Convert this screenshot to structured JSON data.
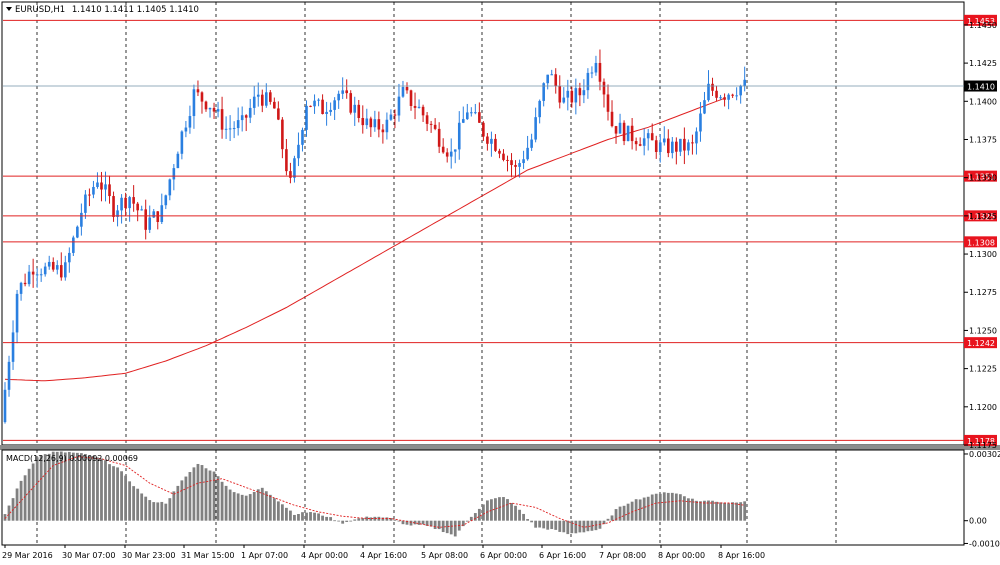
{
  "header": {
    "symbol": "EURUSD,H1",
    "ohlc": "1.1410 1.1411 1.1405 1.1410"
  },
  "macd_header": "MACD(12,26,9) 0.00092 0.00069",
  "colors": {
    "bull": "#2a7fe0",
    "bear": "#d01818",
    "level_line": "#e02020",
    "ma_line": "#e02020",
    "grid": "#000000",
    "histogram": "#808080",
    "signal": "#e02020",
    "bid_line": "#7090a8"
  },
  "chart_data": [
    {
      "type": "candlestick",
      "title": "EURUSD,H1",
      "ylim": [
        1.1175,
        1.1465
      ],
      "y_ticks": [
        "1.1450",
        "1.1425",
        "1.1400",
        "1.1375",
        "1.1350",
        "1.1325",
        "1.1300",
        "1.1275",
        "1.1250",
        "1.1225",
        "1.1200",
        "1.1175"
      ],
      "x_labels": [
        "29 Mar 2016",
        "30 Mar 07:00",
        "30 Mar 23:00",
        "31 Mar 15:00",
        "1 Apr 07:00",
        "4 Apr 00:00",
        "4 Apr 16:00",
        "5 Apr 08:00",
        "6 Apr 00:00",
        "6 Apr 16:00",
        "7 Apr 08:00",
        "8 Apr 00:00",
        "8 Apr 16:00"
      ],
      "horizontal_levels": [
        "1.1453",
        "1.1351",
        "1.1325",
        "1.1308",
        "1.1242",
        "1.1178"
      ],
      "current_price": "1.1410",
      "ma_anchors": [
        [
          0,
          1.1218
        ],
        [
          10,
          1.1217
        ],
        [
          20,
          1.1219
        ],
        [
          30,
          1.1222
        ],
        [
          40,
          1.123
        ],
        [
          50,
          1.124
        ],
        [
          60,
          1.1252
        ],
        [
          70,
          1.1265
        ],
        [
          80,
          1.128
        ],
        [
          90,
          1.1295
        ],
        [
          100,
          1.131
        ],
        [
          110,
          1.1325
        ],
        [
          120,
          1.134
        ],
        [
          130,
          1.1355
        ],
        [
          140,
          1.1365
        ],
        [
          150,
          1.1375
        ],
        [
          160,
          1.1383
        ],
        [
          170,
          1.1393
        ],
        [
          179,
          1.1402
        ]
      ],
      "price_anchors": [
        [
          0,
          1.119
        ],
        [
          4,
          1.1275
        ],
        [
          8,
          1.1292
        ],
        [
          12,
          1.1289
        ],
        [
          16,
          1.129
        ],
        [
          20,
          1.1328
        ],
        [
          24,
          1.135
        ],
        [
          28,
          1.133
        ],
        [
          32,
          1.1338
        ],
        [
          36,
          1.132
        ],
        [
          40,
          1.1328
        ],
        [
          44,
          1.137
        ],
        [
          48,
          1.1405
        ],
        [
          52,
          1.1398
        ],
        [
          56,
          1.1382
        ],
        [
          60,
          1.1385
        ],
        [
          64,
          1.1405
        ],
        [
          68,
          1.1395
        ],
        [
          72,
          1.1345
        ],
        [
          76,
          1.14
        ],
        [
          80,
          1.1395
        ],
        [
          84,
          1.1405
        ],
        [
          88,
          1.1395
        ],
        [
          92,
          1.1382
        ],
        [
          96,
          1.1385
        ],
        [
          100,
          1.1405
        ],
        [
          104,
          1.1395
        ],
        [
          108,
          1.138
        ],
        [
          112,
          1.1365
        ],
        [
          116,
          1.1395
        ],
        [
          120,
          1.138
        ],
        [
          124,
          1.137
        ],
        [
          128,
          1.1355
        ],
        [
          132,
          1.1375
        ],
        [
          136,
          1.142
        ],
        [
          140,
          1.14
        ],
        [
          144,
          1.1405
        ],
        [
          148,
          1.143
        ],
        [
          152,
          1.1385
        ],
        [
          156,
          1.1378
        ],
        [
          160,
          1.1375
        ],
        [
          164,
          1.137
        ],
        [
          168,
          1.137
        ],
        [
          172,
          1.137
        ],
        [
          176,
          1.1408
        ],
        [
          180,
          1.1405
        ],
        [
          184,
          1.141
        ]
      ]
    },
    {
      "type": "histogram",
      "title": "MACD(12,26,9)",
      "ylim": [
        -0.0011,
        0.0032
      ],
      "y_ticks": [
        "0.00302",
        "0.00",
        "-0.00103"
      ],
      "hist_anchors": [
        [
          0,
          0.0003
        ],
        [
          4,
          0.0018
        ],
        [
          8,
          0.0029
        ],
        [
          12,
          0.0031
        ],
        [
          16,
          0.0031
        ],
        [
          20,
          0.003
        ],
        [
          24,
          0.0028
        ],
        [
          28,
          0.0024
        ],
        [
          32,
          0.0016
        ],
        [
          36,
          0.0009
        ],
        [
          40,
          0.0008
        ],
        [
          44,
          0.0018
        ],
        [
          48,
          0.0026
        ],
        [
          52,
          0.0022
        ],
        [
          56,
          0.0014
        ],
        [
          60,
          0.0011
        ],
        [
          64,
          0.0015
        ],
        [
          68,
          0.0009
        ],
        [
          72,
          0.0003
        ],
        [
          76,
          0.0004
        ],
        [
          80,
          0.0002
        ],
        [
          84,
          -0.0001
        ],
        [
          88,
          0.0001
        ],
        [
          92,
          0.0002
        ],
        [
          96,
          0.0001
        ],
        [
          100,
          -0.0002
        ],
        [
          104,
          -0.0002
        ],
        [
          108,
          -0.0004
        ],
        [
          112,
          -0.0007
        ],
        [
          116,
          0.0002
        ],
        [
          120,
          0.0009
        ],
        [
          124,
          0.0011
        ],
        [
          128,
          0.0005
        ],
        [
          132,
          -0.0003
        ],
        [
          136,
          -0.0004
        ],
        [
          140,
          -0.0006
        ],
        [
          144,
          -0.0005
        ],
        [
          148,
          -0.0004
        ],
        [
          152,
          0.0005
        ],
        [
          156,
          0.0009
        ],
        [
          160,
          0.0011
        ],
        [
          164,
          0.0013
        ],
        [
          168,
          0.0012
        ],
        [
          172,
          0.0009
        ],
        [
          176,
          0.0009
        ],
        [
          180,
          0.0008
        ],
        [
          184,
          0.0009
        ]
      ],
      "signal_anchors": [
        [
          0,
          0.0001
        ],
        [
          6,
          0.0013
        ],
        [
          12,
          0.0025
        ],
        [
          18,
          0.0029
        ],
        [
          24,
          0.0028
        ],
        [
          30,
          0.0025
        ],
        [
          36,
          0.0017
        ],
        [
          42,
          0.0012
        ],
        [
          48,
          0.0017
        ],
        [
          54,
          0.0019
        ],
        [
          60,
          0.0015
        ],
        [
          66,
          0.0011
        ],
        [
          72,
          0.0007
        ],
        [
          78,
          0.0004
        ],
        [
          84,
          0.0002
        ],
        [
          90,
          0.0001
        ],
        [
          96,
          0.0001
        ],
        [
          102,
          -0.0001
        ],
        [
          108,
          -0.0003
        ],
        [
          114,
          -0.0002
        ],
        [
          120,
          0.0004
        ],
        [
          126,
          0.0008
        ],
        [
          132,
          0.0006
        ],
        [
          138,
          0.0001
        ],
        [
          144,
          -0.0003
        ],
        [
          150,
          -0.0001
        ],
        [
          156,
          0.0004
        ],
        [
          162,
          0.0008
        ],
        [
          168,
          0.0009
        ],
        [
          174,
          0.0008
        ],
        [
          180,
          0.0008
        ],
        [
          184,
          0.0007
        ]
      ]
    }
  ]
}
